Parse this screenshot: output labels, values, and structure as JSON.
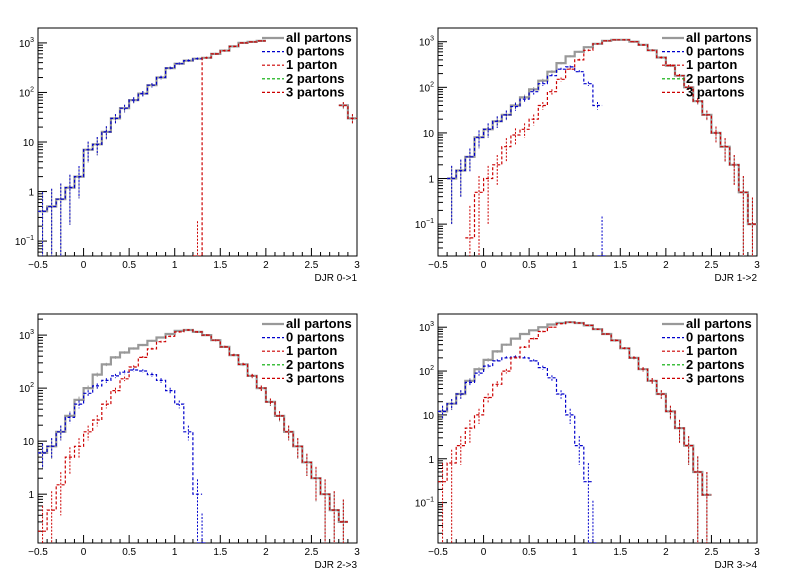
{
  "chart_data": [
    {
      "type": "line",
      "xlabel": "DJR 0->1",
      "ylabel": "",
      "xlim": [
        -0.5,
        3
      ],
      "ylim": [
        0.05,
        2000
      ],
      "yscale": "log",
      "x_ticks": [
        "−0.5",
        "0",
        "0.5",
        "1",
        "1.5",
        "2",
        "2.5",
        "3"
      ],
      "y_ticks": [
        {
          "base": "10",
          "exp": "−1",
          "value": 0.1
        },
        {
          "base": "1",
          "exp": "",
          "value": 1
        },
        {
          "base": "10",
          "exp": "",
          "value": 10
        },
        {
          "base": "10",
          "exp": "2",
          "value": 100
        },
        {
          "base": "10",
          "exp": "3",
          "value": 1000
        }
      ],
      "legend": {
        "placement": "top-right",
        "entries": [
          "all partons",
          "0 partons",
          "1 parton",
          "2 partons",
          "3 partons"
        ]
      },
      "series": [
        {
          "name": "all partons",
          "color": "#999999",
          "style": "solid",
          "x": [
            -0.45,
            -0.35,
            -0.25,
            -0.15,
            -0.05,
            0.05,
            0.15,
            0.25,
            0.35,
            0.45,
            0.55,
            0.65,
            0.75,
            0.85,
            0.95,
            1.05,
            1.15,
            1.25,
            1.35,
            1.45,
            1.55,
            1.65,
            1.75,
            1.85,
            1.95,
            2.05,
            2.15,
            2.25,
            2.35,
            2.45,
            2.55,
            2.65,
            2.75,
            2.85,
            2.95
          ],
          "y": [
            0.4,
            0.5,
            0.7,
            1.2,
            2,
            7,
            9,
            16,
            30,
            48,
            70,
            95,
            140,
            200,
            310,
            380,
            440,
            480,
            500,
            600,
            700,
            850,
            1000,
            1050,
            1100,
            null,
            null,
            null,
            null,
            null,
            null,
            null,
            null,
            55,
            30
          ]
        },
        {
          "name": "0 partons",
          "color": "#0000cc",
          "style": "dashed",
          "x": [
            -0.45,
            -0.35,
            -0.25,
            -0.15,
            -0.05,
            0.05,
            0.15,
            0.25,
            0.35,
            0.45,
            0.55,
            0.65,
            0.75,
            0.85,
            0.95,
            1.05,
            1.15,
            1.25
          ],
          "y": [
            0.4,
            0.5,
            0.7,
            1.2,
            2,
            7,
            9,
            16,
            30,
            48,
            70,
            95,
            140,
            200,
            310,
            380,
            440,
            480
          ]
        },
        {
          "name": "1 parton",
          "color": "#cc0000",
          "style": "dashed",
          "x": [
            1.25,
            1.35,
            1.45,
            1.55,
            1.65,
            1.75,
            1.85,
            1.95,
            2.85,
            2.95
          ],
          "y": [
            0.05,
            500,
            600,
            700,
            850,
            1000,
            1050,
            1100,
            55,
            30
          ]
        },
        {
          "name": "2 partons",
          "color": "#00aa00",
          "style": "dashed",
          "x": [],
          "y": []
        },
        {
          "name": "3 partons",
          "color": "#cc0000",
          "style": "dashed",
          "x": [],
          "y": []
        }
      ]
    },
    {
      "type": "line",
      "xlabel": "DJR 1->2",
      "ylabel": "",
      "xlim": [
        -0.5,
        3
      ],
      "ylim": [
        0.02,
        2000
      ],
      "yscale": "log",
      "x_ticks": [
        "−0.5",
        "0",
        "0.5",
        "1",
        "1.5",
        "2",
        "2.5",
        "3"
      ],
      "y_ticks": [
        {
          "base": "10",
          "exp": "−1",
          "value": 0.1
        },
        {
          "base": "1",
          "exp": "",
          "value": 1
        },
        {
          "base": "10",
          "exp": "",
          "value": 10
        },
        {
          "base": "10",
          "exp": "2",
          "value": 100
        },
        {
          "base": "10",
          "exp": "3",
          "value": 1000
        }
      ],
      "legend": {
        "placement": "top-right",
        "entries": [
          "all partons",
          "0 partons",
          "1 parton",
          "2 partons",
          "3 partons"
        ]
      },
      "series": [
        {
          "name": "all partons",
          "color": "#999999",
          "style": "solid",
          "x": [
            -0.35,
            -0.25,
            -0.15,
            -0.05,
            0.05,
            0.15,
            0.25,
            0.35,
            0.45,
            0.55,
            0.65,
            0.75,
            0.85,
            0.95,
            1.05,
            1.15,
            1.25,
            1.35,
            1.45,
            1.55,
            1.65,
            1.75,
            1.85,
            1.95,
            2.05,
            2.15,
            2.25,
            2.35,
            2.45,
            2.55,
            2.65,
            2.75,
            2.85,
            2.95
          ],
          "y": [
            1,
            1.5,
            3,
            8,
            12,
            18,
            25,
            40,
            60,
            90,
            140,
            220,
            340,
            480,
            600,
            760,
            900,
            1050,
            1100,
            1100,
            1000,
            850,
            650,
            450,
            300,
            180,
            100,
            50,
            25,
            10,
            5,
            2,
            0.5,
            0.1
          ]
        },
        {
          "name": "0 partons",
          "color": "#0000cc",
          "style": "dashed",
          "x": [
            -0.35,
            -0.25,
            -0.15,
            -0.05,
            0.05,
            0.15,
            0.25,
            0.35,
            0.45,
            0.55,
            0.65,
            0.75,
            0.85,
            0.95,
            1.05,
            1.15,
            1.25,
            1.3
          ],
          "y": [
            1,
            1.5,
            3,
            8,
            12,
            18,
            25,
            38,
            55,
            80,
            120,
            180,
            250,
            280,
            220,
            120,
            40,
            0.02
          ]
        },
        {
          "name": "1 parton",
          "color": "#cc0000",
          "style": "dashed",
          "x": [
            -0.15,
            -0.05,
            0.05,
            0.15,
            0.25,
            0.35,
            0.45,
            0.55,
            0.65,
            0.75,
            0.85,
            0.95,
            1.05,
            1.15,
            1.25,
            1.35,
            1.45,
            1.55,
            1.65,
            1.75,
            1.85,
            1.95,
            2.05,
            2.15,
            2.25,
            2.35,
            2.45,
            2.55,
            2.65,
            2.75,
            2.85,
            2.95
          ],
          "y": [
            0.05,
            0.5,
            1,
            2,
            5,
            9,
            12,
            20,
            40,
            80,
            150,
            250,
            400,
            650,
            900,
            1050,
            1100,
            1100,
            1000,
            850,
            650,
            450,
            300,
            180,
            100,
            50,
            25,
            10,
            5,
            2,
            0.5,
            0.1
          ]
        },
        {
          "name": "2 partons",
          "color": "#00aa00",
          "style": "dashed",
          "x": [],
          "y": []
        },
        {
          "name": "3 partons",
          "color": "#cc0000",
          "style": "dashed",
          "x": [],
          "y": []
        }
      ]
    },
    {
      "type": "line",
      "xlabel": "DJR 2->3",
      "ylabel": "",
      "xlim": [
        -0.5,
        3
      ],
      "ylim": [
        0.12,
        2500
      ],
      "yscale": "log",
      "x_ticks": [
        "−0.5",
        "0",
        "0.5",
        "1",
        "1.5",
        "2",
        "2.5",
        "3"
      ],
      "y_ticks": [
        {
          "base": "1",
          "exp": "",
          "value": 1
        },
        {
          "base": "10",
          "exp": "",
          "value": 10
        },
        {
          "base": "10",
          "exp": "2",
          "value": 100
        },
        {
          "base": "10",
          "exp": "3",
          "value": 1000
        }
      ],
      "legend": {
        "placement": "top-right",
        "entries": [
          "all partons",
          "0 partons",
          "1 parton",
          "2 partons",
          "3 partons"
        ]
      },
      "series": [
        {
          "name": "all partons",
          "color": "#999999",
          "style": "solid",
          "x": [
            -0.45,
            -0.35,
            -0.25,
            -0.15,
            -0.05,
            0.05,
            0.15,
            0.25,
            0.35,
            0.45,
            0.55,
            0.65,
            0.75,
            0.85,
            0.95,
            1.05,
            1.15,
            1.25,
            1.35,
            1.45,
            1.55,
            1.65,
            1.75,
            1.85,
            1.95,
            2.05,
            2.15,
            2.25,
            2.35,
            2.45,
            2.55,
            2.65,
            2.75,
            2.85
          ],
          "y": [
            6,
            8,
            15,
            30,
            60,
            100,
            180,
            280,
            380,
            470,
            560,
            650,
            780,
            900,
            1050,
            1200,
            1250,
            1150,
            1000,
            800,
            600,
            420,
            280,
            170,
            100,
            55,
            30,
            15,
            8,
            4,
            2,
            1,
            0.5,
            0.3
          ]
        },
        {
          "name": "0 partons",
          "color": "#0000cc",
          "style": "dashed",
          "x": [
            -0.45,
            -0.35,
            -0.25,
            -0.15,
            -0.05,
            0.05,
            0.15,
            0.25,
            0.35,
            0.45,
            0.55,
            0.65,
            0.75,
            0.85,
            0.95,
            1.05,
            1.15,
            1.25,
            1.3
          ],
          "y": [
            6,
            8,
            15,
            28,
            50,
            80,
            110,
            140,
            170,
            200,
            220,
            210,
            180,
            140,
            90,
            50,
            15,
            1,
            0.12
          ]
        },
        {
          "name": "1 parton",
          "color": "#cc0000",
          "style": "dashed",
          "x": [
            -0.45,
            -0.35,
            -0.25,
            -0.15,
            -0.05,
            0.05,
            0.15,
            0.25,
            0.35,
            0.45,
            0.55,
            0.65,
            0.75,
            0.85,
            0.95,
            1.05,
            1.15,
            1.25,
            1.35,
            1.45,
            1.55,
            1.65,
            1.75,
            1.85,
            1.95,
            2.05,
            2.15,
            2.25,
            2.35,
            2.45,
            2.55,
            2.65,
            2.75,
            2.85
          ],
          "y": [
            0.2,
            0.5,
            1.5,
            5,
            8,
            15,
            25,
            50,
            90,
            150,
            250,
            380,
            550,
            750,
            950,
            1150,
            1250,
            1150,
            1000,
            800,
            600,
            420,
            280,
            170,
            100,
            55,
            30,
            15,
            8,
            4,
            2,
            1,
            0.5,
            0.3
          ]
        },
        {
          "name": "2 partons",
          "color": "#00aa00",
          "style": "dashed",
          "x": [],
          "y": []
        },
        {
          "name": "3 partons",
          "color": "#cc0000",
          "style": "dashed",
          "x": [],
          "y": []
        }
      ]
    },
    {
      "type": "line",
      "xlabel": "DJR 3->4",
      "ylabel": "",
      "xlim": [
        -0.5,
        3
      ],
      "ylim": [
        0.012,
        2000
      ],
      "yscale": "log",
      "x_ticks": [
        "−0.5",
        "0",
        "0.5",
        "1",
        "1.5",
        "2",
        "2.5",
        "3"
      ],
      "y_ticks": [
        {
          "base": "10",
          "exp": "−1",
          "value": 0.1
        },
        {
          "base": "1",
          "exp": "",
          "value": 1
        },
        {
          "base": "10",
          "exp": "",
          "value": 10
        },
        {
          "base": "10",
          "exp": "2",
          "value": 100
        },
        {
          "base": "10",
          "exp": "3",
          "value": 1000
        }
      ],
      "legend": {
        "placement": "top-right",
        "entries": [
          "all partons",
          "0 partons",
          "1 parton",
          "2 partons",
          "3 partons"
        ]
      },
      "series": [
        {
          "name": "all partons",
          "color": "#999999",
          "style": "solid",
          "x": [
            -0.45,
            -0.35,
            -0.25,
            -0.15,
            -0.05,
            0.05,
            0.15,
            0.25,
            0.35,
            0.45,
            0.55,
            0.65,
            0.75,
            0.85,
            0.95,
            1.05,
            1.15,
            1.25,
            1.35,
            1.45,
            1.55,
            1.65,
            1.75,
            1.85,
            1.95,
            2.05,
            2.15,
            2.25,
            2.35,
            2.45
          ],
          "y": [
            12,
            18,
            30,
            60,
            110,
            180,
            280,
            400,
            550,
            700,
            850,
            1000,
            1150,
            1250,
            1300,
            1250,
            1100,
            900,
            700,
            500,
            330,
            200,
            110,
            60,
            30,
            12,
            5,
            2,
            0.5,
            0.15
          ]
        },
        {
          "name": "0 partons",
          "color": "#0000cc",
          "style": "dashed",
          "x": [
            -0.45,
            -0.35,
            -0.25,
            -0.15,
            -0.05,
            0.05,
            0.15,
            0.25,
            0.35,
            0.45,
            0.55,
            0.65,
            0.75,
            0.85,
            0.95,
            1.05,
            1.15,
            1.2
          ],
          "y": [
            12,
            18,
            30,
            55,
            90,
            130,
            170,
            200,
            210,
            200,
            170,
            120,
            70,
            30,
            10,
            2,
            0.3,
            0.012
          ]
        },
        {
          "name": "1 parton",
          "color": "#cc0000",
          "style": "dashed",
          "x": [
            -0.45,
            -0.35,
            -0.25,
            -0.15,
            -0.05,
            0.05,
            0.15,
            0.25,
            0.35,
            0.45,
            0.55,
            0.65,
            0.75,
            0.85,
            0.95,
            1.05,
            1.15,
            1.25,
            1.35,
            1.45,
            1.55,
            1.65,
            1.75,
            1.85,
            1.95,
            2.05,
            2.15,
            2.25,
            2.35,
            2.45
          ],
          "y": [
            0.3,
            0.8,
            2,
            5,
            10,
            25,
            50,
            100,
            200,
            350,
            550,
            800,
            1000,
            1200,
            1300,
            1250,
            1100,
            900,
            700,
            500,
            330,
            200,
            110,
            60,
            30,
            12,
            5,
            2,
            0.5,
            0.15
          ]
        },
        {
          "name": "2 partons",
          "color": "#00aa00",
          "style": "dashed",
          "x": [],
          "y": []
        },
        {
          "name": "3 partons",
          "color": "#cc0000",
          "style": "dashed",
          "x": [],
          "y": []
        }
      ]
    }
  ]
}
